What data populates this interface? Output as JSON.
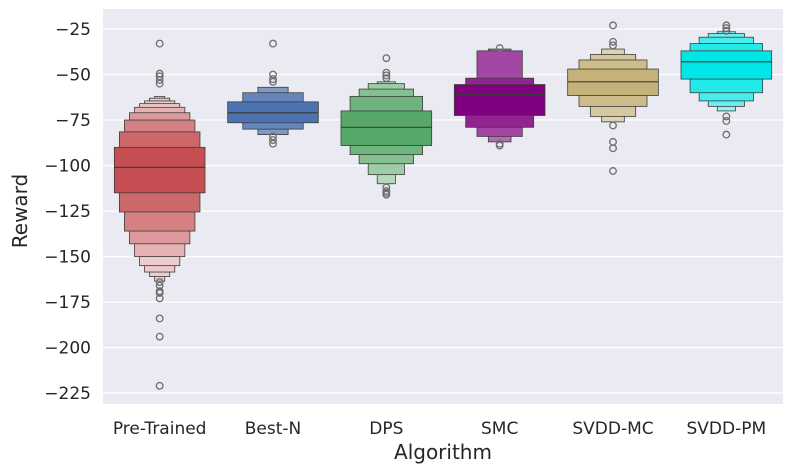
{
  "chart_data": {
    "type": "boxen",
    "xlabel": "Algorithm",
    "ylabel": "Reward",
    "ylim": [
      -231,
      -14
    ],
    "yticks": [
      -25,
      -50,
      -75,
      -100,
      -125,
      -150,
      -175,
      -200,
      -225
    ],
    "ytick_labels": [
      "−25",
      "−50",
      "−75",
      "−100",
      "−125",
      "−150",
      "−175",
      "−200",
      "−225"
    ],
    "grid": true,
    "background": "#eaeaf2",
    "categories": [
      "Pre-Trained",
      "Best-N",
      "DPS",
      "SMC",
      "SVDD-MC",
      "SVDD-PM"
    ],
    "series": [
      {
        "category": "Pre-Trained",
        "color": "#c44e52",
        "median": -101,
        "boxes": [
          [
            -90,
            -115
          ],
          [
            -81.5,
            -125.5
          ],
          [
            -75,
            -136
          ],
          [
            -71,
            -143
          ],
          [
            -68,
            -150
          ],
          [
            -66,
            -155
          ],
          [
            -64.5,
            -158.5
          ],
          [
            -63,
            -161
          ],
          [
            -62,
            -163.5
          ]
        ],
        "outliers": [
          -33,
          -49.5,
          -51,
          -53,
          -55,
          -164,
          -166,
          -169,
          -170,
          -173,
          -184,
          -194,
          -221
        ]
      },
      {
        "category": "Best-N",
        "color": "#4c72b0",
        "median": -71,
        "boxes": [
          [
            -65,
            -76.5
          ],
          [
            -60,
            -80
          ],
          [
            -57,
            -83
          ]
        ],
        "outliers": [
          -33,
          -50,
          -52.5,
          -54,
          -84,
          -86,
          -88
        ]
      },
      {
        "category": "DPS",
        "color": "#55a868",
        "median": -79,
        "boxes": [
          [
            -70,
            -89
          ],
          [
            -62,
            -94
          ],
          [
            -58,
            -99
          ],
          [
            -55,
            -105
          ],
          [
            -54,
            -110
          ]
        ],
        "outliers": [
          -41,
          -49,
          -50.5,
          -52,
          -112,
          -114,
          -115,
          -116
        ]
      },
      {
        "category": "SMC",
        "color": "#800080",
        "median": -61,
        "boxes": [
          [
            -55.5,
            -72.5
          ],
          [
            -52,
            -79
          ],
          [
            -37,
            -84
          ],
          [
            -36,
            -87
          ]
        ],
        "outliers": [
          -35.5,
          -88,
          -89
        ]
      },
      {
        "category": "SVDD-MC",
        "color": "#c4b278",
        "median": -54,
        "boxes": [
          [
            -47,
            -61.5
          ],
          [
            -42,
            -67.5
          ],
          [
            -39,
            -73
          ],
          [
            -36,
            -76
          ]
        ],
        "outliers": [
          -23,
          -32,
          -34,
          -78,
          -87,
          -90.5,
          -103
        ]
      },
      {
        "category": "SVDD-PM",
        "color": "#00e5e5",
        "median": -43,
        "boxes": [
          [
            -37,
            -52.5
          ],
          [
            -33,
            -60
          ],
          [
            -29.5,
            -64.5
          ],
          [
            -27.5,
            -67.5
          ],
          [
            -26.5,
            -70
          ]
        ],
        "outliers": [
          -23,
          -24.5,
          -26,
          -73,
          -75.5,
          -83
        ]
      }
    ]
  }
}
